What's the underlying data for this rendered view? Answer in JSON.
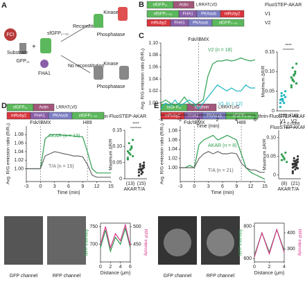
{
  "diagram": {
    "letter": "A",
    "fci": "FCI",
    "gfp11": "GFP₁₁",
    "sfgfp": "sfGFP₁₋₁₀",
    "substrate": "Substrate",
    "fha1": "FHA1",
    "reconstitution": "Reconstitution",
    "no_reconstitution": "No reconstitution",
    "kinase_top": "Kinase",
    "phosphatase_top": "Phosphatase",
    "kinase_bottom": "Kinase",
    "phosphatase_bottom": "Phosphatase"
  },
  "constructs": {
    "B": {
      "letter": "B",
      "rows": [
        {
          "segments": [
            {
              "text": "sfGFP₁₁",
              "color": "#5cb85c"
            },
            {
              "text": "Actin",
              "color": "#a2577b"
            }
          ],
          "tail": "LRRATLVD",
          "name": "FluoSTEP-AKAR"
        },
        {
          "segments": [
            {
              "text": "sfGFP₁₋₁₀",
              "color": "#5cb85c"
            },
            {
              "text": "FHA1",
              "color": "#8a5fa8"
            },
            {
              "text": "PKAsub",
              "color": "#7d7fc4"
            },
            {
              "text": "mRuby2",
              "color": "#d9363e"
            }
          ],
          "name": "V1"
        },
        {
          "segments": [
            {
              "text": "mRuby2",
              "color": "#d9363e"
            },
            {
              "text": "FHA1",
              "color": "#8a5fa8"
            },
            {
              "text": "PKAsub",
              "color": "#7d7fc4"
            },
            {
              "text": "sfGFP₁₋₁₀",
              "color": "#5cb85c"
            }
          ],
          "name": "V2"
        }
      ]
    },
    "D": {
      "letter": "D",
      "name": "Actin-FluoSTEP-AKAR",
      "rows": [
        {
          "segments": [
            {
              "text": "sfGFP₁₁",
              "color": "#5cb85c"
            },
            {
              "text": "Actin",
              "color": "#a2577b"
            }
          ],
          "tail": "LRRATLVD"
        },
        {
          "segments": [
            {
              "text": "mRuby2",
              "color": "#d9363e"
            },
            {
              "text": "FHA1",
              "color": "#8a5fa8"
            },
            {
              "text": "PKAsub",
              "color": "#7d7fc4"
            },
            {
              "text": "sfGFP₁₋₁₀",
              "color": "#5cb85c"
            }
          ]
        }
      ]
    },
    "E": {
      "letter": "E",
      "name": "Clathrin-FluoSTEP-AKAR",
      "rows": [
        {
          "segments": [
            {
              "text": "sfGFP₁₁",
              "color": "#5cb85c"
            },
            {
              "text": "Clathrin",
              "color": "#a2577b"
            }
          ],
          "tail": "LRRATLVD"
        },
        {
          "segments": [
            {
              "text": "mRuby2",
              "color": "#d9363e"
            },
            {
              "text": "FHA1",
              "color": "#8a5fa8"
            },
            {
              "text": "PKAsub",
              "color": "#7d7fc4"
            },
            {
              "text": "sfGFP₁₋₁₀",
              "color": "#5cb85c"
            }
          ]
        }
      ]
    }
  },
  "letter_c": "C",
  "images": {
    "d_gfp": "GFP channel",
    "d_rfp": "RFP channel",
    "e_gfp": "GFP channel",
    "e_rfp": "RFP channel"
  },
  "chart_data": [
    {
      "type": "line",
      "x": [
        -4,
        -3.5,
        -3,
        -2.5,
        -2,
        -1.5,
        -1,
        -0.5,
        0,
        0.5,
        1,
        1.5,
        2,
        2.5,
        3,
        3.5,
        4,
        4.5,
        5,
        5.5,
        6
      ],
      "series": [
        {
          "name": "V2 (n = 18)",
          "color": "#2e9e4f",
          "values": [
            1.0,
            1.005,
            1.0,
            0.995,
            1.0,
            1.01,
            1.0,
            0.995,
            1.0,
            1.005,
            1.045,
            1.065,
            1.07,
            1.07,
            1.072,
            1.07,
            1.072,
            1.075,
            1.072,
            1.07,
            1.072
          ]
        },
        {
          "name": "V1 (n = 12)",
          "color": "#1fb5c0",
          "values": [
            0.99,
            1.0,
            0.995,
            1.005,
            0.995,
            1.0,
            1.005,
            1.0,
            0.99,
            1.0,
            1.01,
            1.02,
            1.03,
            1.025,
            1.02,
            1.025,
            1.02,
            1.02,
            1.03,
            1.025,
            1.025
          ]
        }
      ],
      "xlim": [
        -4,
        6
      ],
      "xticks": [
        -4,
        -2,
        0,
        2,
        4,
        6
      ],
      "ylim": [
        0.98,
        1.1
      ],
      "yticks": [
        {
          "value": 1,
          "label": "1.00"
        },
        1.02,
        1.04,
        1.06,
        1.08,
        {
          "value": 1.1,
          "label": "1.10"
        }
      ],
      "xlabel": "Time (min)",
      "ylabel": "Avg. R/G emission ratio (R/R₀)",
      "annotations": [
        {
          "text": "Fsk/IBMX",
          "x": 0
        }
      ]
    },
    {
      "type": "strip",
      "categories": [
        "V1",
        "V2"
      ],
      "colors": [
        "#1fb5c0",
        "#2e9e4f"
      ],
      "points": [
        [
          0.02,
          0.03,
          0.025,
          0.04,
          0.035,
          0.01,
          0.045,
          0.03,
          0.02,
          0.05,
          0.028,
          0.038
        ],
        [
          0.06,
          0.08,
          0.09,
          0.1,
          0.07,
          0.085,
          0.11,
          0.075,
          0.095,
          0.12,
          0.065,
          0.08,
          0.09,
          0.1,
          0.07,
          0.085,
          0.078,
          0.092
        ]
      ],
      "counts": [
        "(12)",
        "(18)"
      ],
      "significance": "****",
      "group": "FluoSTEP AKAR",
      "ylabel": "Maximum ΔR/R",
      "ylim": [
        0,
        0.15
      ],
      "yticks": [
        0,
        0.05,
        {
          "value": 0.1,
          "label": "0.10"
        },
        0.15
      ]
    },
    {
      "type": "line",
      "x": [
        -3,
        -2,
        -1,
        0,
        1,
        2,
        3,
        4,
        5,
        6,
        7,
        8,
        9,
        10,
        11,
        12,
        13,
        14,
        15
      ],
      "series": [
        {
          "name": "AKAR (n = 13)",
          "color": "#2e9e4f",
          "values": [
            1.0,
            1.0,
            1.0,
            1.0,
            1.07,
            1.08,
            1.08,
            1.08,
            1.078,
            1.078,
            1.077,
            1.076,
            1.075,
            1.04,
            1.0,
            0.99,
            0.99,
            0.99,
            0.99
          ]
        },
        {
          "name": "T/A (n = 15)",
          "color": "#666666",
          "values": [
            1.0,
            1.0,
            1.0,
            1.0,
            1.03,
            1.035,
            1.04,
            1.038,
            1.035,
            1.033,
            1.03,
            1.03,
            1.028,
            1.01,
            0.985,
            0.98,
            0.98,
            0.98,
            0.98
          ]
        }
      ],
      "xlim": [
        -3,
        15
      ],
      "xticks": [
        -3,
        0,
        3,
        6,
        9,
        12,
        15
      ],
      "ylim": [
        0.97,
        1.1
      ],
      "yticks": [
        {
          "value": 1,
          "label": "1.00"
        },
        1.02,
        1.04,
        1.06,
        1.08
      ],
      "xlabel": "Time (min)",
      "ylabel": "Avg. R/G emission ratio (R/R₀)",
      "annotations": [
        {
          "text": "Fsk/IBMX",
          "x": 0
        },
        {
          "text": "H89",
          "x": 10
        }
      ]
    },
    {
      "type": "strip",
      "categories": [
        "AKAR",
        "T/A"
      ],
      "colors": [
        "#2e9e4f",
        "#333333"
      ],
      "points": [
        [
          0.06,
          0.08,
          0.09,
          0.1,
          0.07,
          0.085,
          0.11,
          0.075,
          0.095,
          0.12,
          0.065,
          0.08,
          0.09
        ],
        [
          0.02,
          0.03,
          0.025,
          0.04,
          0.035,
          0.01,
          0.045,
          0.03,
          0.02,
          0.05,
          0.028,
          0.038,
          0.015,
          0.032,
          0.042
        ]
      ],
      "counts": [
        "(13)",
        "(15)"
      ],
      "significance": "****",
      "ylabel": "Maximum ΔR/R",
      "ylim": [
        0,
        0.15
      ],
      "yticks": [
        0,
        0.05,
        {
          "value": 0.1,
          "label": "0.10"
        },
        0.15
      ]
    },
    {
      "type": "line",
      "x": [
        -3,
        -2,
        -1,
        0,
        1,
        2,
        3,
        4,
        5,
        6,
        7,
        8,
        9,
        10,
        11,
        12,
        13,
        14,
        15
      ],
      "series": [
        {
          "name": "AKAR (n = 8)",
          "color": "#2e9e4f",
          "values": [
            1.0,
            1.0,
            1.005,
            1.0,
            1.05,
            1.06,
            1.065,
            1.07,
            1.06,
            1.065,
            1.07,
            1.065,
            1.06,
            1.03,
            1.0,
            0.99,
            0.985,
            0.98,
            0.975
          ]
        },
        {
          "name": "T/A (n = 21)",
          "color": "#666666",
          "values": [
            1.0,
            1.0,
            1.0,
            1.0,
            1.02,
            1.03,
            1.035,
            1.03,
            1.035,
            1.03,
            1.03,
            1.032,
            1.03,
            1.01,
            1.0,
            0.995,
            0.995,
            0.99,
            0.99
          ]
        }
      ],
      "xlim": [
        -3,
        15
      ],
      "xticks": [
        -3,
        0,
        3,
        6,
        9,
        12,
        15
      ],
      "ylim": [
        0.97,
        1.09
      ],
      "yticks": [
        {
          "value": 1,
          "label": "1.00"
        },
        1.02,
        1.04,
        1.06,
        1.08
      ],
      "xlabel": "Time (min)",
      "ylabel": "Avg. R/G emission ratio (R/R₀)",
      "annotations": [
        {
          "text": "Fsk/IBMX",
          "x": 0
        },
        {
          "text": "H89",
          "x": 10
        }
      ]
    },
    {
      "type": "strip",
      "categories": [
        "AKAR",
        "T/A"
      ],
      "colors": [
        "#2e9e4f",
        "#333333"
      ],
      "points": [
        [
          0.04,
          0.05,
          0.045,
          0.06,
          0.035,
          0.055,
          0.05,
          0.042
        ],
        [
          0.02,
          0.03,
          0.025,
          0.04,
          0.035,
          0.01,
          0.045,
          0.03,
          0.02,
          0.05,
          0.028,
          0.038,
          0.015,
          0.032,
          0.042,
          0.005,
          0.022,
          0.036,
          0.027,
          0.018,
          0.03
        ]
      ],
      "counts": [
        "(8)",
        "(21)"
      ],
      "significance": "P = 0.0006",
      "ylabel": "Maximum ΔR/R",
      "ylim": [
        -0.01,
        0.12
      ],
      "yticks": [
        0,
        0.05,
        {
          "value": 0.1,
          "label": "0.10"
        }
      ]
    },
    {
      "type": "profile",
      "x": [
        0,
        1,
        2,
        3,
        4,
        5,
        6
      ],
      "series": [
        {
          "name": "GFP intensity",
          "color": "#2e9e4f",
          "values": [
            690,
            740,
            680,
            720,
            700,
            745,
            690
          ]
        },
        {
          "name": "RFP intensity",
          "color": "#d6338a",
          "axis": "y2",
          "values": [
            450,
            500,
            440,
            480,
            460,
            505,
            445
          ]
        }
      ],
      "xlim": [
        0,
        6
      ],
      "xticks": [
        0,
        2,
        4,
        6
      ],
      "ylim": [
        650,
        760
      ],
      "yticks": [
        700,
        750
      ],
      "y2lim": [
        400,
        510
      ],
      "y2ticks": [
        450,
        500
      ],
      "xlabel": "Distance (μm)"
    },
    {
      "type": "profile",
      "x": [
        0,
        1,
        2,
        3,
        4
      ],
      "series": [
        {
          "name": "GFP intensity",
          "color": "#2e9e4f",
          "values": [
            620,
            760,
            640,
            780,
            650
          ]
        },
        {
          "name": "RFP intensity",
          "color": "#d6338a",
          "axis": "y2",
          "values": [
            250,
            400,
            270,
            420,
            280
          ]
        }
      ],
      "xlim": [
        0,
        4
      ],
      "xticks": [
        0,
        2,
        4
      ],
      "ylim": [
        580,
        820
      ],
      "yticks": [
        600,
        800
      ],
      "y2lim": [
        220,
        460
      ],
      "y2ticks": [
        300,
        400
      ],
      "xlabel": "Distance (μm)"
    }
  ]
}
